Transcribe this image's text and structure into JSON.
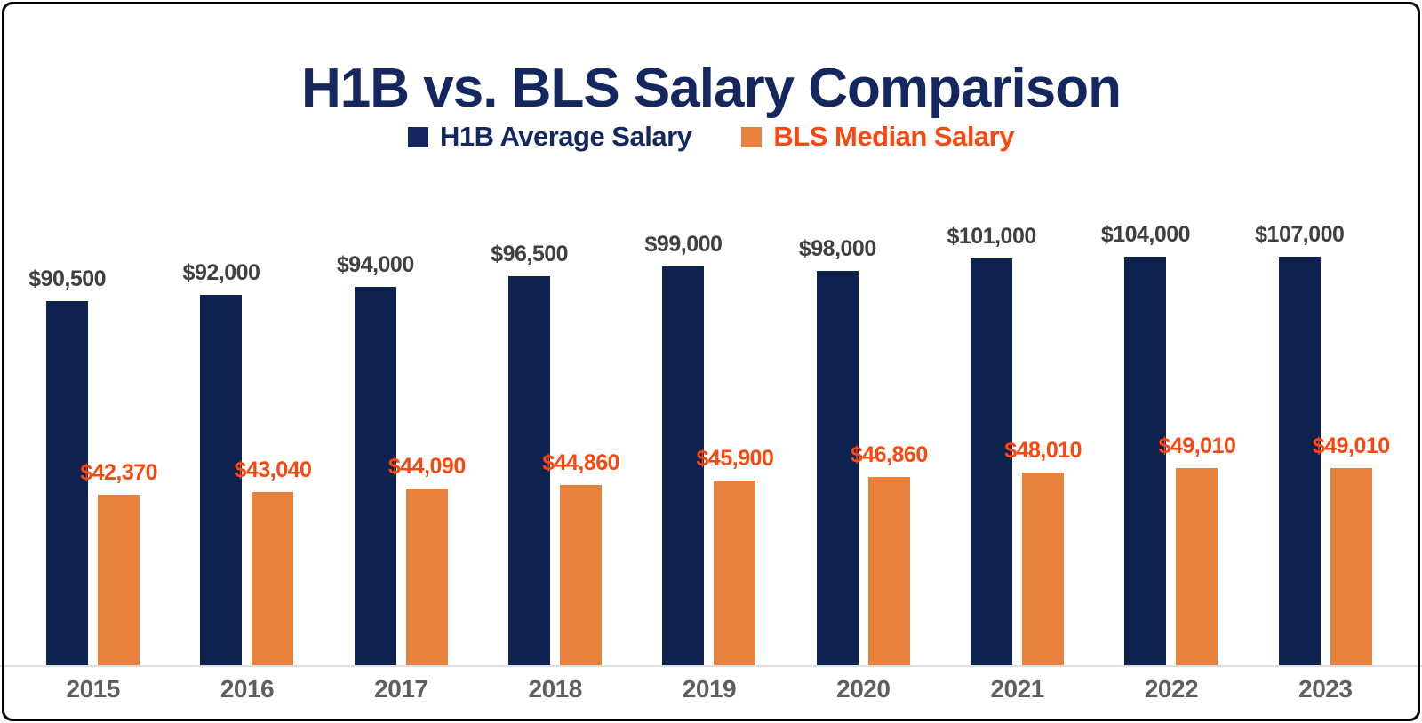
{
  "title": "H1B vs. BLS Salary Comparison",
  "legend": {
    "items": [
      {
        "label": "H1B Average Salary",
        "marker_color": "#14275F",
        "text_color": "#14275F"
      },
      {
        "label": "BLS Median Salary",
        "marker_color": "#E8823E",
        "text_color": "#FA470F"
      }
    ]
  },
  "colors": {
    "title": "#14275F",
    "h1b_bar": "#0E2250",
    "bls_bar": "#E8813B",
    "h1b_label": "#404040",
    "bls_label": "#FA470F",
    "year_label": "#5E5E5E",
    "axis_line": "#DEDEDE",
    "frame_border": "#000000",
    "background": "#FFFFFF"
  },
  "chart_data": {
    "type": "bar",
    "title": "H1B vs. BLS Salary Comparison",
    "categories": [
      "2015",
      "2016",
      "2017",
      "2018",
      "2019",
      "2020",
      "2021",
      "2022",
      "2023"
    ],
    "series": [
      {
        "id": "h1b",
        "name": "H1B Average Salary",
        "color": "#0E2250",
        "label_color": "#404040",
        "values": [
          90500,
          92000,
          94000,
          96500,
          99000,
          98000,
          101000,
          104000,
          107000
        ],
        "labels": [
          "$90,500",
          "$92,000",
          "$94,000",
          "$96,500",
          "$99,000",
          "$98,000",
          "$101,000",
          "$104,000",
          "$107,000"
        ]
      },
      {
        "id": "bls",
        "name": "BLS Median Salary",
        "color": "#E8813B",
        "label_color": "#FA470F",
        "values": [
          42370,
          43040,
          44090,
          44860,
          45900,
          46860,
          48010,
          49010,
          49010
        ],
        "labels": [
          "$42,370",
          "$43,040",
          "$44,090",
          "$44,860",
          "$45,900",
          "$46,860",
          "$48,010",
          "$49,010",
          "$49,010"
        ]
      }
    ],
    "xlabel": "",
    "ylabel": "",
    "ylim": [
      0,
      110000
    ],
    "grid": false,
    "legend_position": "top",
    "data_labels": true,
    "y_axis_visible": false
  }
}
